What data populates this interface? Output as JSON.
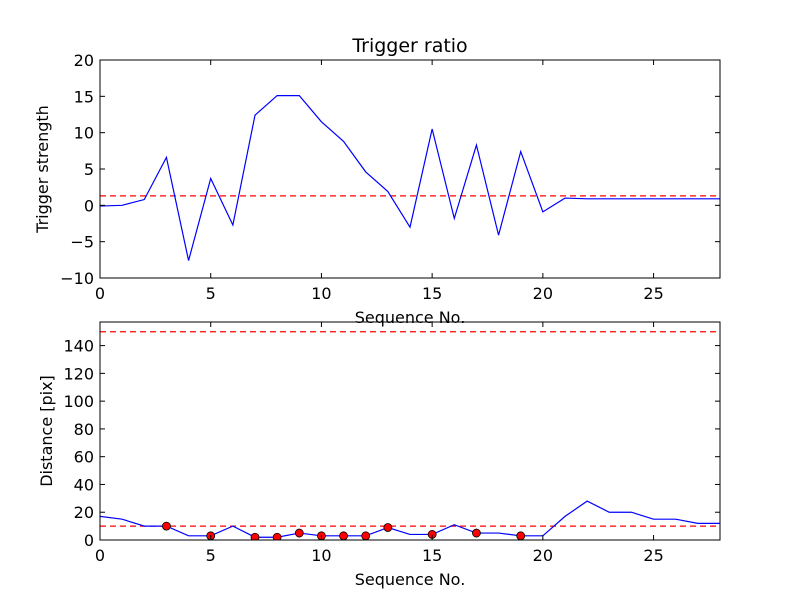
{
  "chart_data": [
    {
      "type": "line",
      "title": "Trigger ratio",
      "xlabel": "Sequence No.",
      "ylabel": "Trigger strength",
      "xlim": [
        0,
        28
      ],
      "ylim": [
        -10,
        20
      ],
      "xticks": [
        0,
        5,
        10,
        15,
        20,
        25
      ],
      "yticks": [
        -10,
        -5,
        0,
        5,
        10,
        15,
        20
      ],
      "xtick_labels": [
        "0",
        "5",
        "10",
        "15",
        "20",
        "25"
      ],
      "ytick_labels": [
        "−10",
        "−5",
        "0",
        "5",
        "10",
        "15",
        "20"
      ],
      "series": [
        {
          "color": "#0000ff",
          "x": [
            0,
            1,
            2,
            3,
            4,
            5,
            6,
            7,
            8,
            9,
            10,
            11,
            12,
            13,
            14,
            15,
            16,
            17,
            18,
            19,
            20,
            21,
            22,
            23,
            24,
            25,
            26,
            27,
            28
          ],
          "y": [
            -0.1,
            0.0,
            0.8,
            6.6,
            -7.6,
            3.7,
            -2.7,
            12.4,
            15.1,
            15.1,
            11.5,
            8.8,
            4.6,
            1.9,
            -3.0,
            10.5,
            -1.8,
            8.3,
            -4.1,
            7.4,
            -0.9,
            1.0,
            0.9,
            0.9,
            0.9,
            0.9,
            0.9,
            0.9,
            0.9
          ]
        }
      ],
      "reference_lines": [
        {
          "y": 1.3,
          "color": "#ff0000",
          "style": "dashed"
        }
      ],
      "grid": false
    },
    {
      "type": "line",
      "title": "",
      "xlabel": "Sequence No.",
      "ylabel": "Distance [pix]",
      "xlim": [
        0,
        28
      ],
      "ylim": [
        0,
        157
      ],
      "xticks": [
        0,
        5,
        10,
        15,
        20,
        25
      ],
      "yticks": [
        0,
        20,
        40,
        60,
        80,
        100,
        120,
        140
      ],
      "xtick_labels": [
        "0",
        "5",
        "10",
        "15",
        "20",
        "25"
      ],
      "ytick_labels": [
        "0",
        "20",
        "40",
        "60",
        "80",
        "100",
        "120",
        "140"
      ],
      "series": [
        {
          "color": "#0000ff",
          "x": [
            0,
            1,
            2,
            3,
            4,
            5,
            6,
            7,
            8,
            9,
            10,
            11,
            12,
            13,
            14,
            15,
            16,
            17,
            18,
            19,
            20,
            21,
            22,
            23,
            24,
            25,
            26,
            27,
            28
          ],
          "y": [
            17,
            15,
            10,
            10,
            3,
            3,
            10,
            2,
            2,
            5,
            3,
            3,
            3,
            9,
            4,
            4,
            11,
            5,
            5,
            3,
            3,
            17,
            28,
            20,
            20,
            15,
            15,
            12,
            12
          ]
        }
      ],
      "markers": {
        "color": "#ff0000",
        "x": [
          3,
          5,
          7,
          8,
          9,
          10,
          11,
          12,
          13,
          15,
          17,
          19
        ],
        "y": [
          10,
          3,
          2,
          2,
          5,
          3,
          3,
          3,
          9,
          4,
          5,
          3
        ]
      },
      "reference_lines": [
        {
          "y": 10,
          "color": "#ff0000",
          "style": "dashed"
        },
        {
          "y": 150,
          "color": "#ff0000",
          "style": "dashed"
        }
      ],
      "grid": false
    }
  ]
}
